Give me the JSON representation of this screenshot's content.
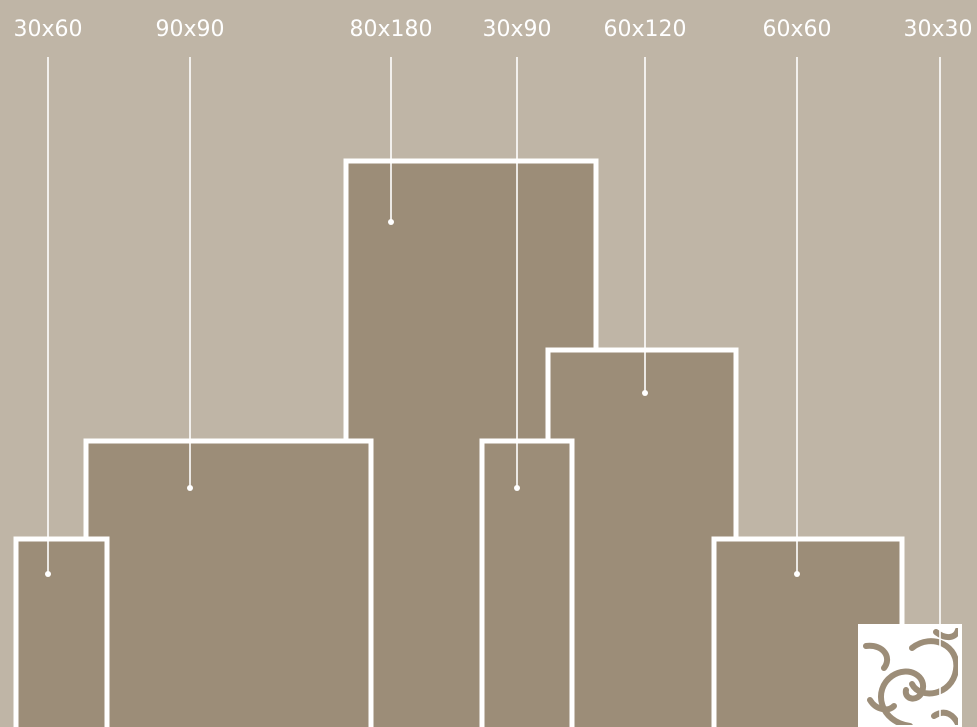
{
  "colors": {
    "background": "#bfb5a6",
    "tile_fill": "#9c8d78",
    "outline": "#ffffff"
  },
  "tiles": [
    {
      "id": "30x60",
      "label": "30x60"
    },
    {
      "id": "90x90",
      "label": "90x90"
    },
    {
      "id": "80x180",
      "label": "80x180"
    },
    {
      "id": "30x90",
      "label": "30x90"
    },
    {
      "id": "60x120",
      "label": "60x120"
    },
    {
      "id": "60x60",
      "label": "60x60"
    },
    {
      "id": "30x30",
      "label": "30x30",
      "pattern": "swirl-pattern-icon"
    }
  ]
}
